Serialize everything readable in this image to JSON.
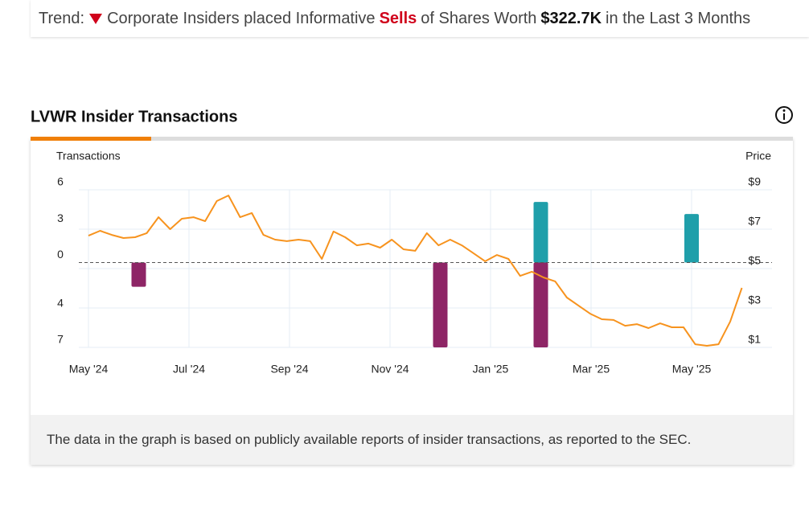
{
  "trend": {
    "label": "Trend:",
    "prefix": "Corporate Insiders placed Informative",
    "action": "Sells",
    "middle": "of Shares Worth",
    "amount": "$322.7K",
    "suffix": "in the Last 3 Months"
  },
  "chart_data": {
    "type": "combo",
    "title": "LVWR Insider Transactions",
    "ylabel": "Transactions",
    "y2label": "Price",
    "ylim": [
      -7,
      6
    ],
    "yticks": [
      6,
      3,
      0,
      {
        "value": -4,
        "label": "4"
      },
      {
        "value": -7,
        "label": "7"
      }
    ],
    "y2lim": [
      1,
      9
    ],
    "y2ticks": [
      {
        "value": 9,
        "label": "$9"
      },
      {
        "value": 7,
        "label": "$7"
      },
      {
        "value": 5,
        "label": "$5"
      },
      {
        "value": 3,
        "label": "$3"
      },
      {
        "value": 1,
        "label": "$1"
      }
    ],
    "xlim": [
      "2024-05",
      "2025-06"
    ],
    "xticks": [
      {
        "value": "2024-05",
        "label": "May '24"
      },
      {
        "value": "2024-07",
        "label": "Jul '24"
      },
      {
        "value": "2024-09",
        "label": "Sep '24"
      },
      {
        "value": "2024-11",
        "label": "Nov '24"
      },
      {
        "value": "2025-01",
        "label": "Jan '25"
      },
      {
        "value": "2025-03",
        "label": "Mar '25"
      },
      {
        "value": "2025-05",
        "label": "May '25"
      }
    ],
    "grid": true,
    "transactions": {
      "x": [
        "2024-06",
        "2024-12",
        "2025-02",
        "2025-02",
        "2025-05"
      ],
      "values": [
        -2,
        -7,
        -7,
        5,
        4
      ],
      "buy_color": "#1f9faa",
      "sell_color": "#8e2566"
    },
    "price": {
      "axis": "y2",
      "color": "#f7931e",
      "values": [
        6.67,
        6.92,
        6.71,
        6.55,
        6.59,
        6.8,
        7.61,
        7.0,
        7.53,
        7.61,
        7.41,
        8.43,
        8.71,
        7.61,
        7.82,
        6.71,
        6.47,
        6.39,
        6.47,
        6.39,
        5.49,
        6.88,
        6.59,
        6.18,
        6.27,
        6.06,
        6.47,
        5.98,
        5.9,
        6.8,
        6.18,
        6.47,
        6.18,
        5.78,
        5.37,
        5.69,
        5.49,
        4.63,
        4.84,
        4.55,
        4.35,
        3.53,
        3.12,
        2.71,
        2.43,
        2.39,
        2.1,
        2.18,
        1.98,
        2.22,
        2.02,
        2.02,
        1.16,
        1.08,
        1.16,
        2.31,
        4.02
      ]
    }
  },
  "footnote": "The data in the graph is based on publicly available reports of insider transactions, as reported to the SEC."
}
